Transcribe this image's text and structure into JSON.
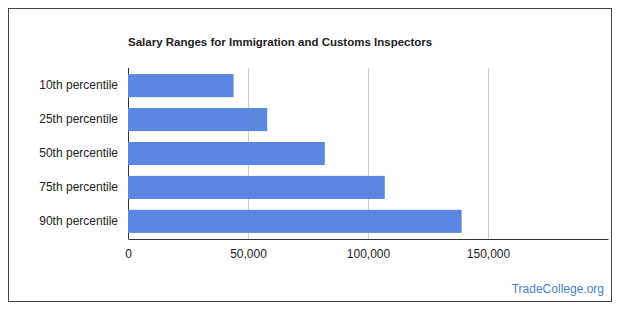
{
  "chart_data": {
    "type": "bar",
    "title": "Salary Ranges for Immigration and Customs Inspectors",
    "categories": [
      "10th percentile",
      "25th percentile",
      "50th percentile",
      "75th percentile",
      "90th percentile"
    ],
    "values": [
      44000,
      58000,
      82000,
      107000,
      139000
    ],
    "color": "#5b87e2",
    "orientation": "horizontal",
    "xlim": [
      0,
      200000
    ],
    "xticks": [
      0,
      {
        "value": 50000,
        "label": "50,000"
      },
      {
        "value": 100000,
        "label": "100,000"
      },
      {
        "value": 150000,
        "label": "150,000"
      }
    ],
    "grid": true,
    "annotations": [
      "TradeCollege.org"
    ]
  }
}
